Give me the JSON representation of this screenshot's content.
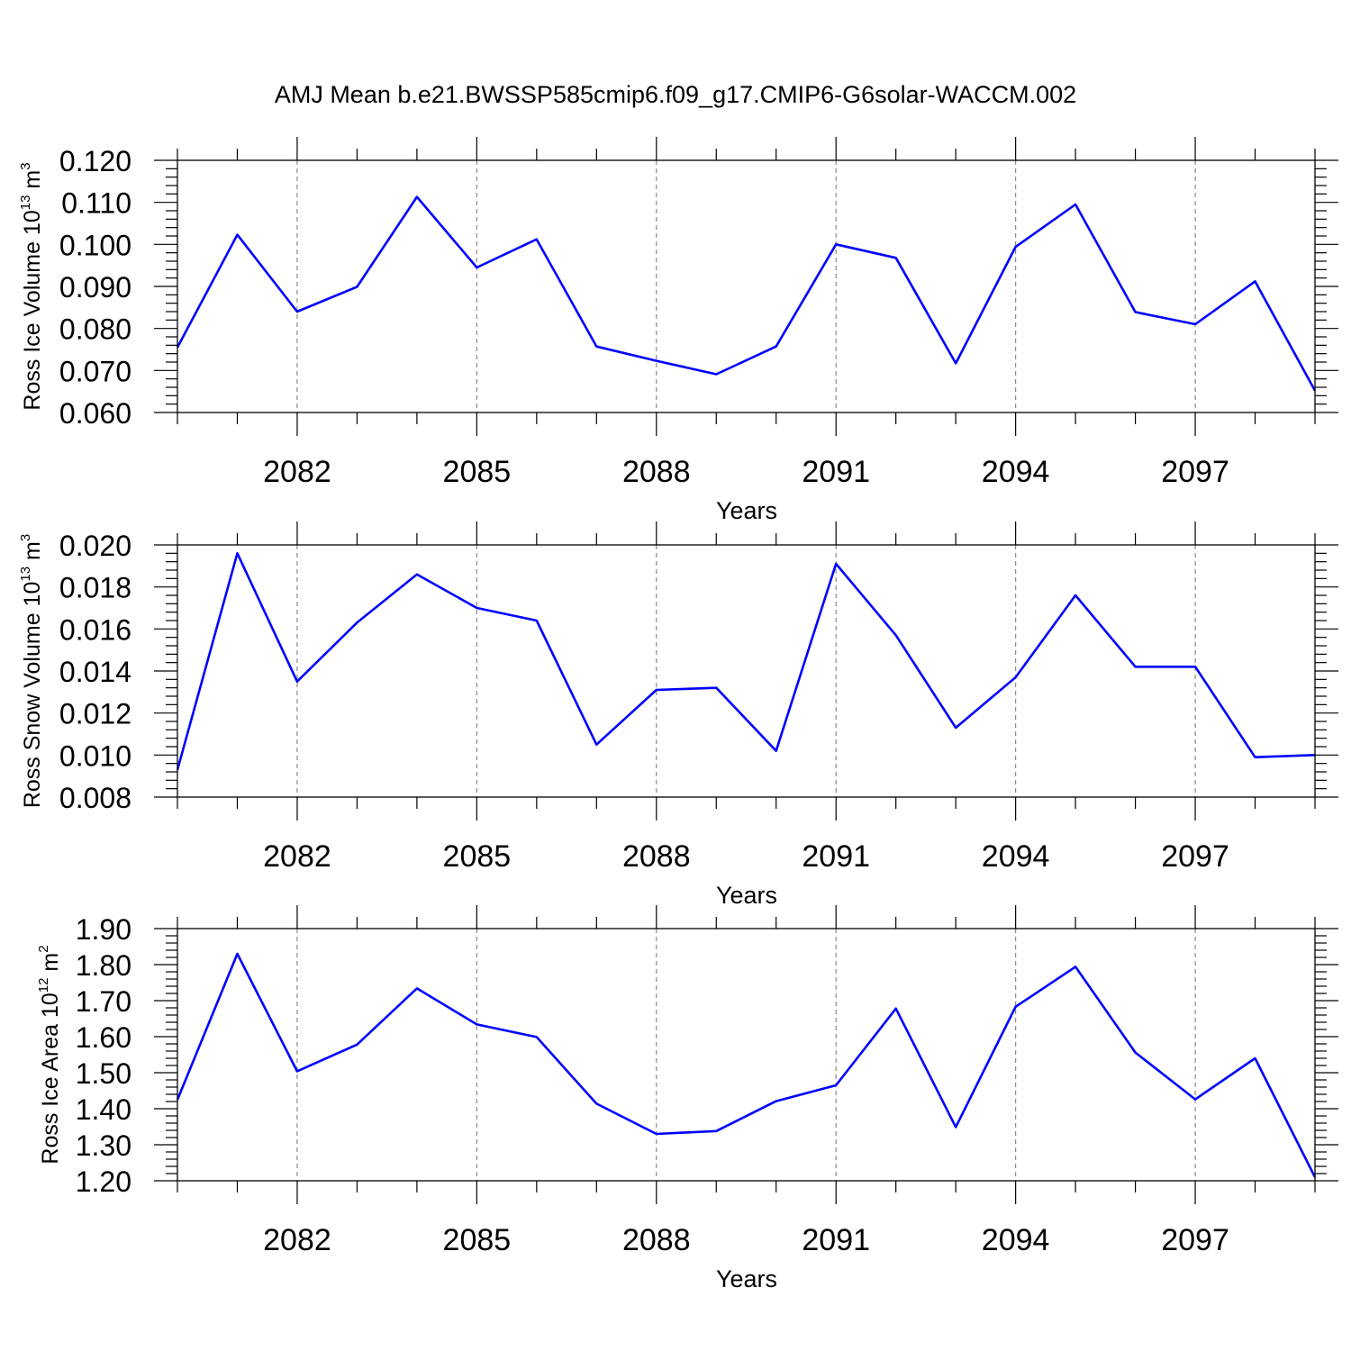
{
  "title": "AMJ Mean b.e21.BWSSP585cmip6.f09_g17.CMIP6-G6solar-WACCM.002",
  "chart_data": [
    {
      "type": "line",
      "ylabel": {
        "prefix": "Ross Ice Volume 10",
        "exp": "13",
        "unit": " m",
        "unit_exp": "3"
      },
      "xlabel": "Years",
      "x_ticks": [
        "2082",
        "2085",
        "2088",
        "2091",
        "2094",
        "2097"
      ],
      "y_ticks": [
        "0.120",
        "0.110",
        "0.100",
        "0.090",
        "0.080",
        "0.070",
        "0.060"
      ],
      "xlim": [
        2080,
        2099
      ],
      "ylim": [
        0.06,
        0.12
      ],
      "grid": "vertical dashed at major x ticks",
      "color": "#0000ff",
      "x": [
        2080,
        2081,
        2082,
        2083,
        2084,
        2085,
        2086,
        2087,
        2088,
        2089,
        2090,
        2091,
        2092,
        2093,
        2094,
        2095,
        2096,
        2097,
        2098,
        2099
      ],
      "values": [
        0.0755,
        0.1023,
        0.084,
        0.0899,
        0.1113,
        0.0945,
        0.1012,
        0.0757,
        0.0723,
        0.0691,
        0.0757,
        0.1,
        0.0968,
        0.0717,
        0.0994,
        0.1095,
        0.0839,
        0.081,
        0.0912,
        0.0652
      ]
    },
    {
      "type": "line",
      "ylabel": {
        "prefix": "Ross Snow Volume 10",
        "exp": "13",
        "unit": " m",
        "unit_exp": "3"
      },
      "xlabel": "Years",
      "x_ticks": [
        "2082",
        "2085",
        "2088",
        "2091",
        "2094",
        "2097"
      ],
      "y_ticks": [
        "0.020",
        "0.018",
        "0.016",
        "0.014",
        "0.012",
        "0.010",
        "0.008"
      ],
      "xlim": [
        2080,
        2099
      ],
      "ylim": [
        0.008,
        0.02
      ],
      "grid": "vertical dashed at major x ticks",
      "color": "#0000ff",
      "x": [
        2080,
        2081,
        2082,
        2083,
        2084,
        2085,
        2086,
        2087,
        2088,
        2089,
        2090,
        2091,
        2092,
        2093,
        2094,
        2095,
        2096,
        2097,
        2098,
        2099
      ],
      "values": [
        0.0093,
        0.0196,
        0.0135,
        0.0163,
        0.0186,
        0.017,
        0.0164,
        0.0105,
        0.0131,
        0.0132,
        0.0102,
        0.0191,
        0.0157,
        0.0113,
        0.0137,
        0.0176,
        0.0142,
        0.0142,
        0.0099,
        0.01
      ]
    },
    {
      "type": "line",
      "ylabel": {
        "prefix": "Ross Ice Area 10",
        "exp": "12",
        "unit": " m",
        "unit_exp": "2"
      },
      "xlabel": "Years",
      "x_ticks": [
        "2082",
        "2085",
        "2088",
        "2091",
        "2094",
        "2097"
      ],
      "y_ticks": [
        "1.90",
        "1.80",
        "1.70",
        "1.60",
        "1.50",
        "1.40",
        "1.30",
        "1.20"
      ],
      "xlim": [
        2080,
        2099
      ],
      "ylim": [
        1.2,
        1.9
      ],
      "grid": "vertical dashed at major x ticks",
      "color": "#0000ff",
      "x": [
        2080,
        2081,
        2082,
        2083,
        2084,
        2085,
        2086,
        2087,
        2088,
        2089,
        2090,
        2091,
        2092,
        2093,
        2094,
        2095,
        2096,
        2097,
        2098,
        2099
      ],
      "values": [
        1.425,
        1.83,
        1.504,
        1.578,
        1.734,
        1.634,
        1.599,
        1.414,
        1.33,
        1.338,
        1.421,
        1.465,
        1.678,
        1.349,
        1.683,
        1.794,
        1.556,
        1.426,
        1.54,
        1.21
      ]
    }
  ]
}
